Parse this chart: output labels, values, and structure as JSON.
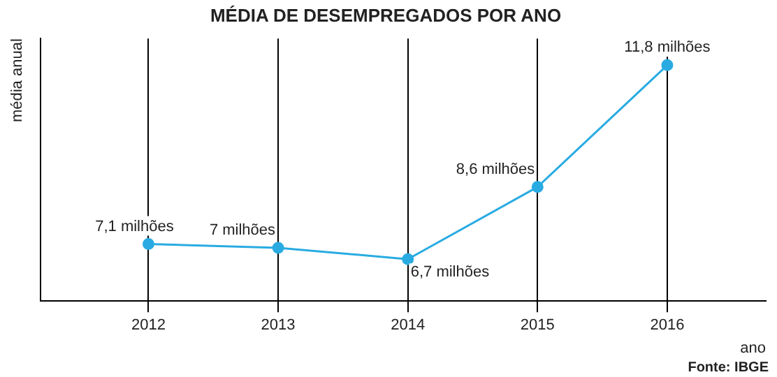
{
  "chart_data": {
    "type": "line",
    "title": "MÉDIA DE DESEMPREGADOS POR ANO",
    "xlabel": "ano",
    "ylabel": "média anual",
    "x": [
      2012,
      2013,
      2014,
      2015,
      2016
    ],
    "series": [
      {
        "color": "#29abe2",
        "values": [
          7.1,
          7,
          6.7,
          8.6,
          11.8
        ],
        "value_labels": [
          "7,1 milhões",
          "7 milhões",
          "6,7 milhões",
          "8,6 milhões",
          "11,8 milhões"
        ]
      }
    ],
    "xlim": [
      2011.17,
      2016.76
    ],
    "xticks": [
      2012,
      2013,
      2014,
      2015,
      2016
    ],
    "ylim": [
      5.6,
      12.5
    ],
    "tick_labels": "x",
    "grid": "x",
    "marker": "circle",
    "line_style": "solid",
    "annotations": [
      "Fonte: IBGE"
    ]
  }
}
